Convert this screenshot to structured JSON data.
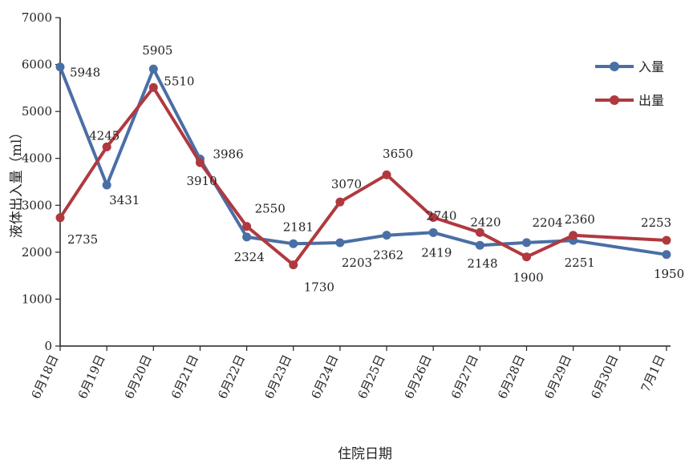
{
  "chart_data": {
    "type": "line",
    "title": "",
    "xlabel": "住院日期",
    "ylabel": "液体出入量（ml）",
    "categories": [
      "6月18日",
      "6月19日",
      "6月20日",
      "6月21日",
      "6月22日",
      "6月23日",
      "6月24日",
      "6月25日",
      "6月26日",
      "6月27日",
      "6月28日",
      "6月29日",
      "6月30日",
      "7月1日"
    ],
    "ylim": [
      0,
      7000
    ],
    "yticks": [
      0,
      1000,
      2000,
      3000,
      4000,
      5000,
      6000,
      7000
    ],
    "grid": false,
    "legend_position": "top-right",
    "series": [
      {
        "name": "入量",
        "color": "#4a6fa5",
        "values": [
          5948,
          3431,
          5905,
          3986,
          2324,
          2181,
          2203,
          2362,
          2419,
          2148,
          2204,
          2251,
          null,
          1950
        ],
        "labels": [
          "5948",
          "3431",
          "5905",
          "3986",
          "2324",
          "2181",
          "2203",
          "2362",
          "2419",
          "2148",
          "2204",
          "2251",
          null,
          "1950"
        ]
      },
      {
        "name": "出量",
        "color": "#b0393f",
        "values": [
          2735,
          4245,
          5510,
          3910,
          2550,
          1730,
          3070,
          3650,
          2740,
          2420,
          1900,
          2360,
          null,
          2253
        ],
        "labels": [
          "2735",
          "4245",
          "5510",
          "3910",
          "2550",
          "1730",
          "3070",
          "3650",
          "2740",
          "2420",
          "1900",
          "2360",
          null,
          "2253"
        ]
      }
    ]
  }
}
